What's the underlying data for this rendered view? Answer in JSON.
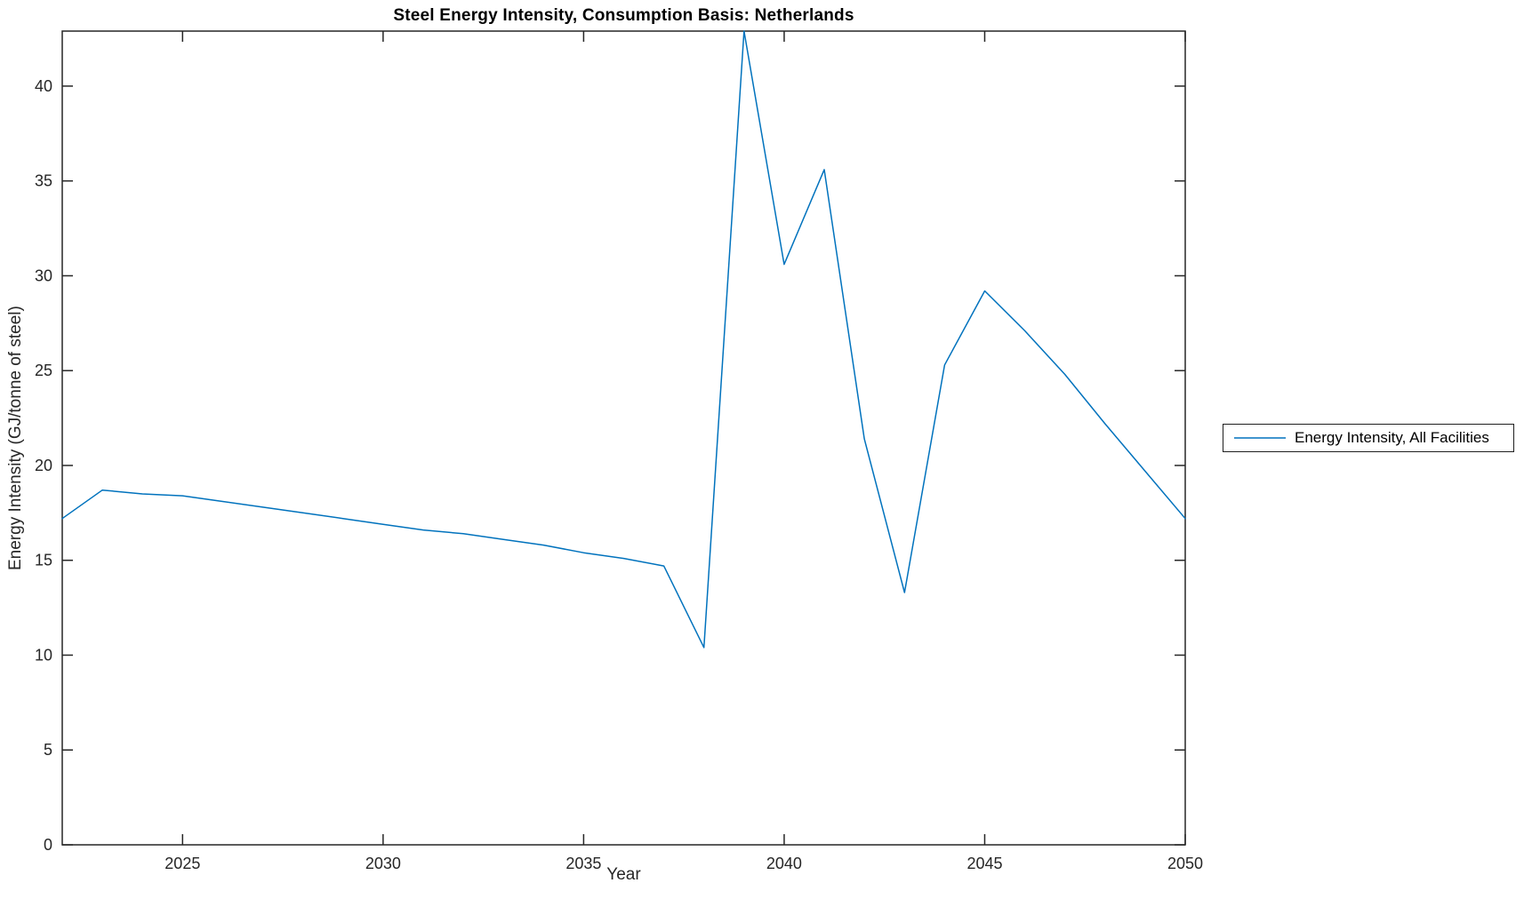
{
  "figure": {
    "title": "Steel Energy Intensity, Consumption Basis: Netherlands",
    "xlabel": "Year",
    "ylabel": "Energy Intensity (GJ/tonne of steel)"
  },
  "legend": {
    "entries": [
      {
        "label": "Energy Intensity, All Facilities",
        "color": "#0072BD"
      }
    ]
  },
  "colors": {
    "line": "#0072BD",
    "axis": "#262626",
    "title": "#000000",
    "background": "#ffffff"
  },
  "chart_data": {
    "type": "line",
    "title": "Steel Energy Intensity, Consumption Basis: Netherlands",
    "xlabel": "Year",
    "ylabel": "Energy Intensity (GJ/tonne of steel)",
    "xlim": [
      2022,
      2050
    ],
    "ylim": [
      0,
      42.9
    ],
    "xticks": [
      2025,
      2030,
      2035,
      2040,
      2045,
      2050
    ],
    "yticks": [
      0,
      5,
      10,
      15,
      20,
      25,
      30,
      35,
      40
    ],
    "grid": false,
    "legend_position": "right-outside",
    "series": [
      {
        "name": "Energy Intensity, All Facilities",
        "x": [
          2022,
          2023,
          2024,
          2025,
          2026,
          2027,
          2028,
          2029,
          2030,
          2031,
          2032,
          2033,
          2034,
          2035,
          2036,
          2037,
          2038,
          2039,
          2040,
          2041,
          2042,
          2043,
          2044,
          2045,
          2046,
          2047,
          2048,
          2049,
          2050
        ],
        "y": [
          17.2,
          18.7,
          18.5,
          18.4,
          18.1,
          17.8,
          17.5,
          17.2,
          16.9,
          16.6,
          16.4,
          16.1,
          15.8,
          15.4,
          15.1,
          14.7,
          10.4,
          42.9,
          30.6,
          35.6,
          21.4,
          13.3,
          25.3,
          29.2,
          27.1,
          24.8,
          22.2,
          19.7,
          17.2
        ]
      }
    ]
  }
}
